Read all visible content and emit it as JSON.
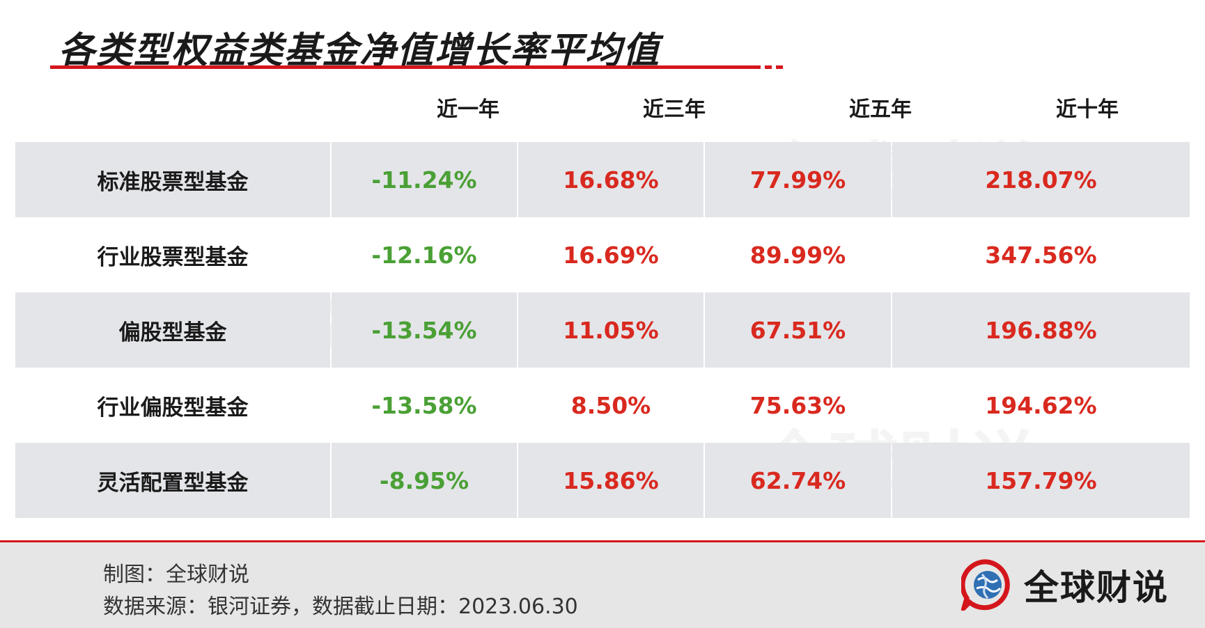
{
  "title": "各类型权益类基金净值增长率平均值",
  "colors": {
    "accent": "#d4161c",
    "negative": "#4aa035",
    "positive": "#d9291f",
    "row_shade": "#e4e5e9"
  },
  "watermark": "全球财说",
  "chart_data": {
    "type": "table",
    "columns": [
      "近一年",
      "近三年",
      "近五年",
      "近十年"
    ],
    "rows": [
      {
        "label": "标准股票型基金",
        "values": [
          "-11.24%",
          "16.68%",
          "77.99%",
          "218.07%"
        ]
      },
      {
        "label": "行业股票型基金",
        "values": [
          "-12.16%",
          "16.69%",
          "89.99%",
          "347.56%"
        ]
      },
      {
        "label": "偏股型基金",
        "values": [
          "-13.54%",
          "11.05%",
          "67.51%",
          "196.88%"
        ]
      },
      {
        "label": "行业偏股型基金",
        "values": [
          "-13.58%",
          "8.50%",
          "75.63%",
          "194.62%"
        ]
      },
      {
        "label": "灵活配置型基金",
        "values": [
          "-8.95%",
          "15.86%",
          "62.74%",
          "157.79%"
        ]
      }
    ]
  },
  "footer": {
    "credit": "制图：全球财说",
    "source": "数据来源：银河证券，数据截止日期：2023.06.30"
  },
  "brand": {
    "name": "全球财说",
    "icon": "globe-speech-bubble-icon"
  }
}
